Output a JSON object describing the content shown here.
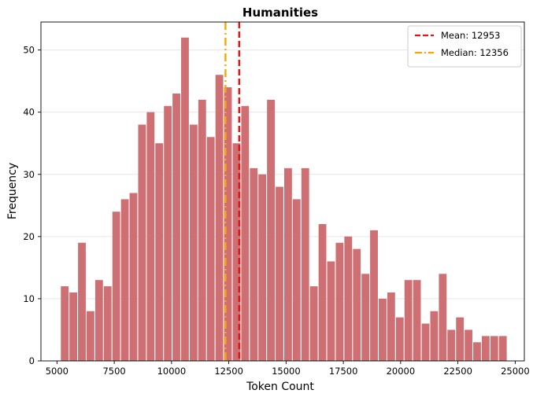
{
  "chart_data": {
    "type": "bar",
    "title": "Humanities",
    "xlabel": "Token Count",
    "ylabel": "Frequency",
    "xlim": [
      4300,
      25400
    ],
    "ylim": [
      0,
      54.5
    ],
    "grid": "y",
    "bar_color": "#cd6f73",
    "bin_start": 5150,
    "bin_width": 375,
    "bin_gap_fraction": 0.1,
    "values": [
      12,
      11,
      19,
      8,
      13,
      12,
      24,
      26,
      27,
      38,
      40,
      35,
      41,
      43,
      52,
      38,
      42,
      36,
      46,
      44,
      35,
      41,
      31,
      30,
      42,
      28,
      31,
      26,
      31,
      12,
      22,
      16,
      19,
      20,
      18,
      14,
      21,
      10,
      11,
      7,
      13,
      13,
      6,
      8,
      14,
      5,
      7,
      5,
      3,
      4,
      4,
      4
    ],
    "xticks": [
      5000,
      7500,
      10000,
      12500,
      15000,
      17500,
      20000,
      22500,
      25000
    ],
    "xtick_labels": [
      "5000",
      "7500",
      "10000",
      "12500",
      "15000",
      "17500",
      "20000",
      "22500",
      "25000"
    ],
    "yticks": [
      0,
      10,
      20,
      30,
      40,
      50
    ],
    "ytick_labels": [
      "0",
      "10",
      "20",
      "30",
      "40",
      "50"
    ],
    "reference_lines": [
      {
        "name": "mean",
        "value": 12953,
        "label": "Mean: 12953",
        "color": "#ee1111",
        "style": "dashed"
      },
      {
        "name": "median",
        "value": 12356,
        "label": "Median: 12356",
        "color": "#ffa500",
        "style": "dashdot"
      }
    ],
    "legend": {
      "position": "top-right"
    }
  }
}
